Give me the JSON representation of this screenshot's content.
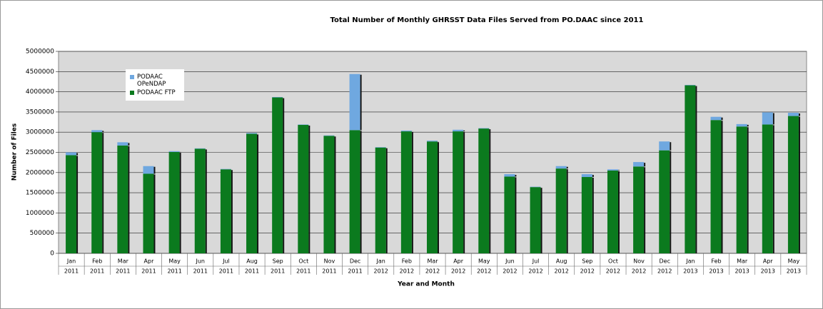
{
  "chart_data": {
    "type": "stacked_bar",
    "title": "Total Number of Monthly GHRSST Data Files Served from PO.DAAC since 2011",
    "x_label": "Year and Month",
    "y_label": "Number of Files",
    "categories": [
      [
        "Jan",
        "2011"
      ],
      [
        "Feb",
        "2011"
      ],
      [
        "Mar",
        "2011"
      ],
      [
        "Apr",
        "2011"
      ],
      [
        "May",
        "2011"
      ],
      [
        "Jun",
        "2011"
      ],
      [
        "Jul",
        "2011"
      ],
      [
        "Aug",
        "2011"
      ],
      [
        "Sep",
        "2011"
      ],
      [
        "Oct",
        "2011"
      ],
      [
        "Nov",
        "2011"
      ],
      [
        "Dec",
        "2011"
      ],
      [
        "Jan",
        "2012"
      ],
      [
        "Feb",
        "2012"
      ],
      [
        "Mar",
        "2012"
      ],
      [
        "Apr",
        "2012"
      ],
      [
        "May",
        "2012"
      ],
      [
        "Jun",
        "2012"
      ],
      [
        "Jul",
        "2012"
      ],
      [
        "Aug",
        "2012"
      ],
      [
        "Sep",
        "2012"
      ],
      [
        "Oct",
        "2012"
      ],
      [
        "Nov",
        "2012"
      ],
      [
        "Dec",
        "2012"
      ],
      [
        "Jan",
        "2013"
      ],
      [
        "Feb",
        "2013"
      ],
      [
        "Mar",
        "2013"
      ],
      [
        "Apr",
        "2013"
      ],
      [
        "May",
        "2013"
      ]
    ],
    "series": [
      {
        "name": "PODAAC FTP",
        "color": "#0b7a1e",
        "values": [
          2430000,
          3000000,
          2670000,
          1970000,
          2510000,
          2590000,
          2080000,
          2960000,
          3860000,
          3180000,
          2910000,
          3050000,
          2620000,
          3020000,
          2770000,
          3020000,
          3090000,
          1900000,
          1640000,
          2100000,
          1890000,
          2050000,
          2150000,
          2550000,
          4160000,
          3300000,
          3140000,
          3190000,
          3400000
        ]
      },
      {
        "name": "PODAAC OPeNDAP",
        "color": "#6fa8e0",
        "values": [
          70000,
          50000,
          80000,
          190000,
          20000,
          10000,
          10000,
          20000,
          10000,
          10000,
          10000,
          1390000,
          10000,
          20000,
          20000,
          40000,
          10000,
          60000,
          10000,
          60000,
          70000,
          30000,
          110000,
          220000,
          10000,
          80000,
          60000,
          300000,
          80000
        ]
      }
    ],
    "ylim": [
      0,
      5000000
    ],
    "yticks": [
      0,
      500000,
      1000000,
      1500000,
      2000000,
      2500000,
      3000000,
      3500000,
      4000000,
      4500000,
      5000000
    ],
    "grid": true,
    "legend": "upper left"
  }
}
